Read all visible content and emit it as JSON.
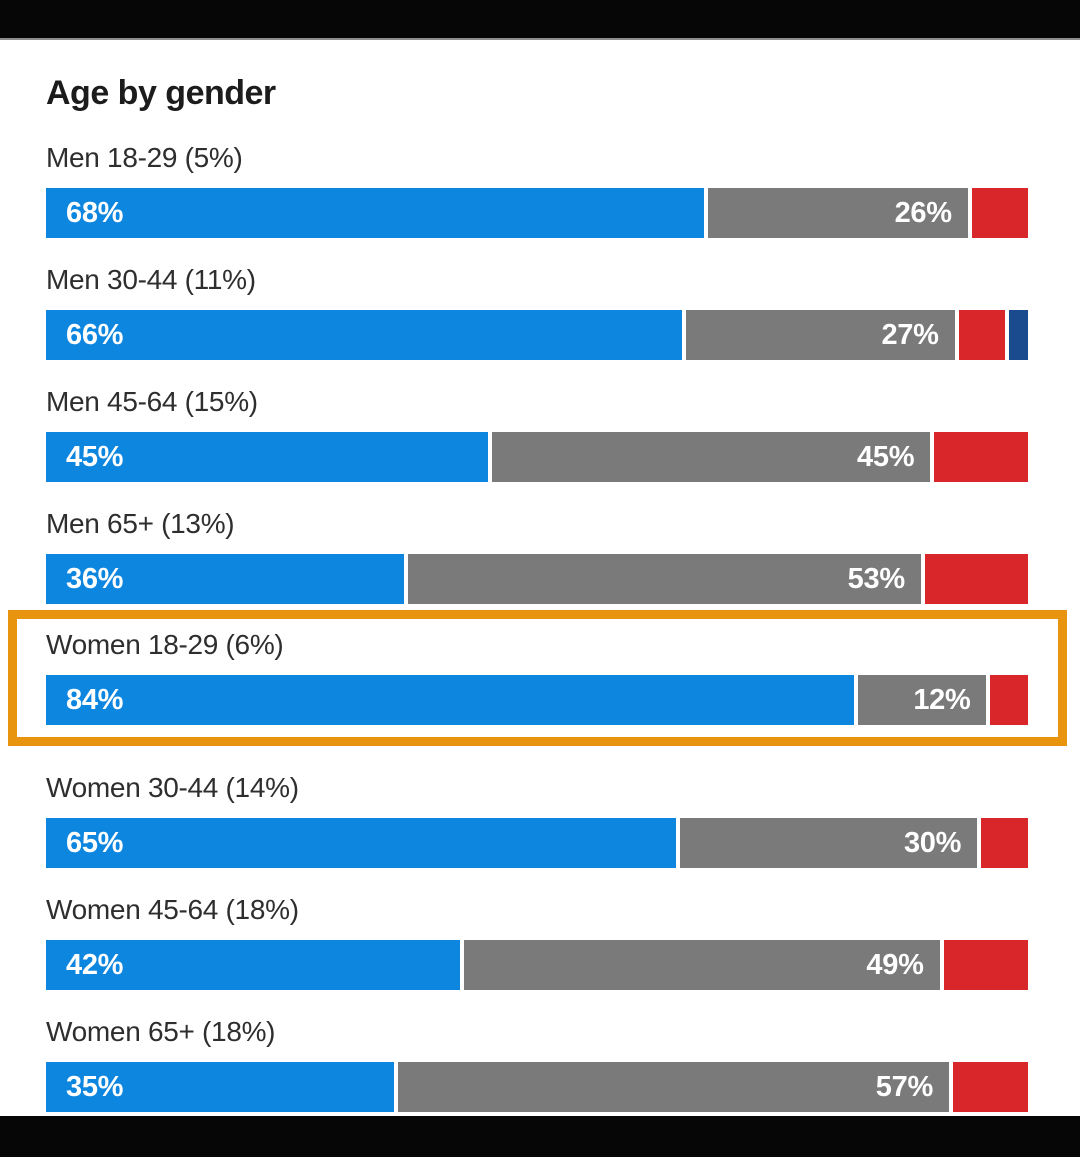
{
  "frame": {
    "top_bar": "letterbox",
    "bottom_bar": "letterbox"
  },
  "colors": {
    "approve_blue": "#0d86e0",
    "neutral_gray": "#7a7a7a",
    "disapprove_red": "#d9262b",
    "other_navy": "#1a4b8f",
    "highlight_orange": "#e8940f",
    "text_dark": "#2e2e2e"
  },
  "chart_data": {
    "type": "bar",
    "orientation": "horizontal",
    "stacked": true,
    "title": "Age by gender",
    "unit": "percent",
    "value_range": [
      0,
      100
    ],
    "grid": false,
    "legend": null,
    "highlighted_row": "Women 18-29 (6%)",
    "rows": [
      {
        "label": "Men 18-29 (5%)",
        "highlighted": false,
        "segments": [
          {
            "name": "blue",
            "value": 68,
            "label": "68%",
            "color": "#0d86e0"
          },
          {
            "name": "gray",
            "value": 26,
            "label": "26%",
            "color": "#7a7a7a"
          },
          {
            "name": "red",
            "value": 6,
            "label": "",
            "color": "#d9262b"
          }
        ]
      },
      {
        "label": "Men 30-44 (11%)",
        "highlighted": false,
        "segments": [
          {
            "name": "blue",
            "value": 66,
            "label": "66%",
            "color": "#0d86e0"
          },
          {
            "name": "gray",
            "value": 27,
            "label": "27%",
            "color": "#7a7a7a"
          },
          {
            "name": "red",
            "value": 5,
            "label": "",
            "color": "#d9262b"
          },
          {
            "name": "navy",
            "value": 2,
            "label": "",
            "color": "#1a4b8f"
          }
        ]
      },
      {
        "label": "Men 45-64 (15%)",
        "highlighted": false,
        "segments": [
          {
            "name": "blue",
            "value": 45,
            "label": "45%",
            "color": "#0d86e0"
          },
          {
            "name": "gray",
            "value": 45,
            "label": "45%",
            "color": "#7a7a7a"
          },
          {
            "name": "red",
            "value": 10,
            "label": "",
            "color": "#d9262b"
          }
        ]
      },
      {
        "label": "Men 65+ (13%)",
        "highlighted": false,
        "segments": [
          {
            "name": "blue",
            "value": 36,
            "label": "36%",
            "color": "#0d86e0"
          },
          {
            "name": "gray",
            "value": 53,
            "label": "53%",
            "color": "#7a7a7a"
          },
          {
            "name": "red",
            "value": 11,
            "label": "",
            "color": "#d9262b"
          }
        ]
      },
      {
        "label": "Women 18-29 (6%)",
        "highlighted": true,
        "segments": [
          {
            "name": "blue",
            "value": 84,
            "label": "84%",
            "color": "#0d86e0"
          },
          {
            "name": "gray",
            "value": 12,
            "label": "12%",
            "color": "#7a7a7a"
          },
          {
            "name": "red",
            "value": 4,
            "label": "",
            "color": "#d9262b"
          }
        ]
      },
      {
        "label": "Women 30-44 (14%)",
        "highlighted": false,
        "segments": [
          {
            "name": "blue",
            "value": 65,
            "label": "65%",
            "color": "#0d86e0"
          },
          {
            "name": "gray",
            "value": 30,
            "label": "30%",
            "color": "#7a7a7a"
          },
          {
            "name": "red",
            "value": 5,
            "label": "",
            "color": "#d9262b"
          }
        ]
      },
      {
        "label": "Women 45-64 (18%)",
        "highlighted": false,
        "segments": [
          {
            "name": "blue",
            "value": 42,
            "label": "42%",
            "color": "#0d86e0"
          },
          {
            "name": "gray",
            "value": 49,
            "label": "49%",
            "color": "#7a7a7a"
          },
          {
            "name": "red",
            "value": 9,
            "label": "",
            "color": "#d9262b"
          }
        ]
      },
      {
        "label": "Women 65+ (18%)",
        "highlighted": false,
        "segments": [
          {
            "name": "blue",
            "value": 35,
            "label": "35%",
            "color": "#0d86e0"
          },
          {
            "name": "gray",
            "value": 57,
            "label": "57%",
            "color": "#7a7a7a"
          },
          {
            "name": "red",
            "value": 8,
            "label": "",
            "color": "#d9262b"
          }
        ]
      }
    ]
  }
}
